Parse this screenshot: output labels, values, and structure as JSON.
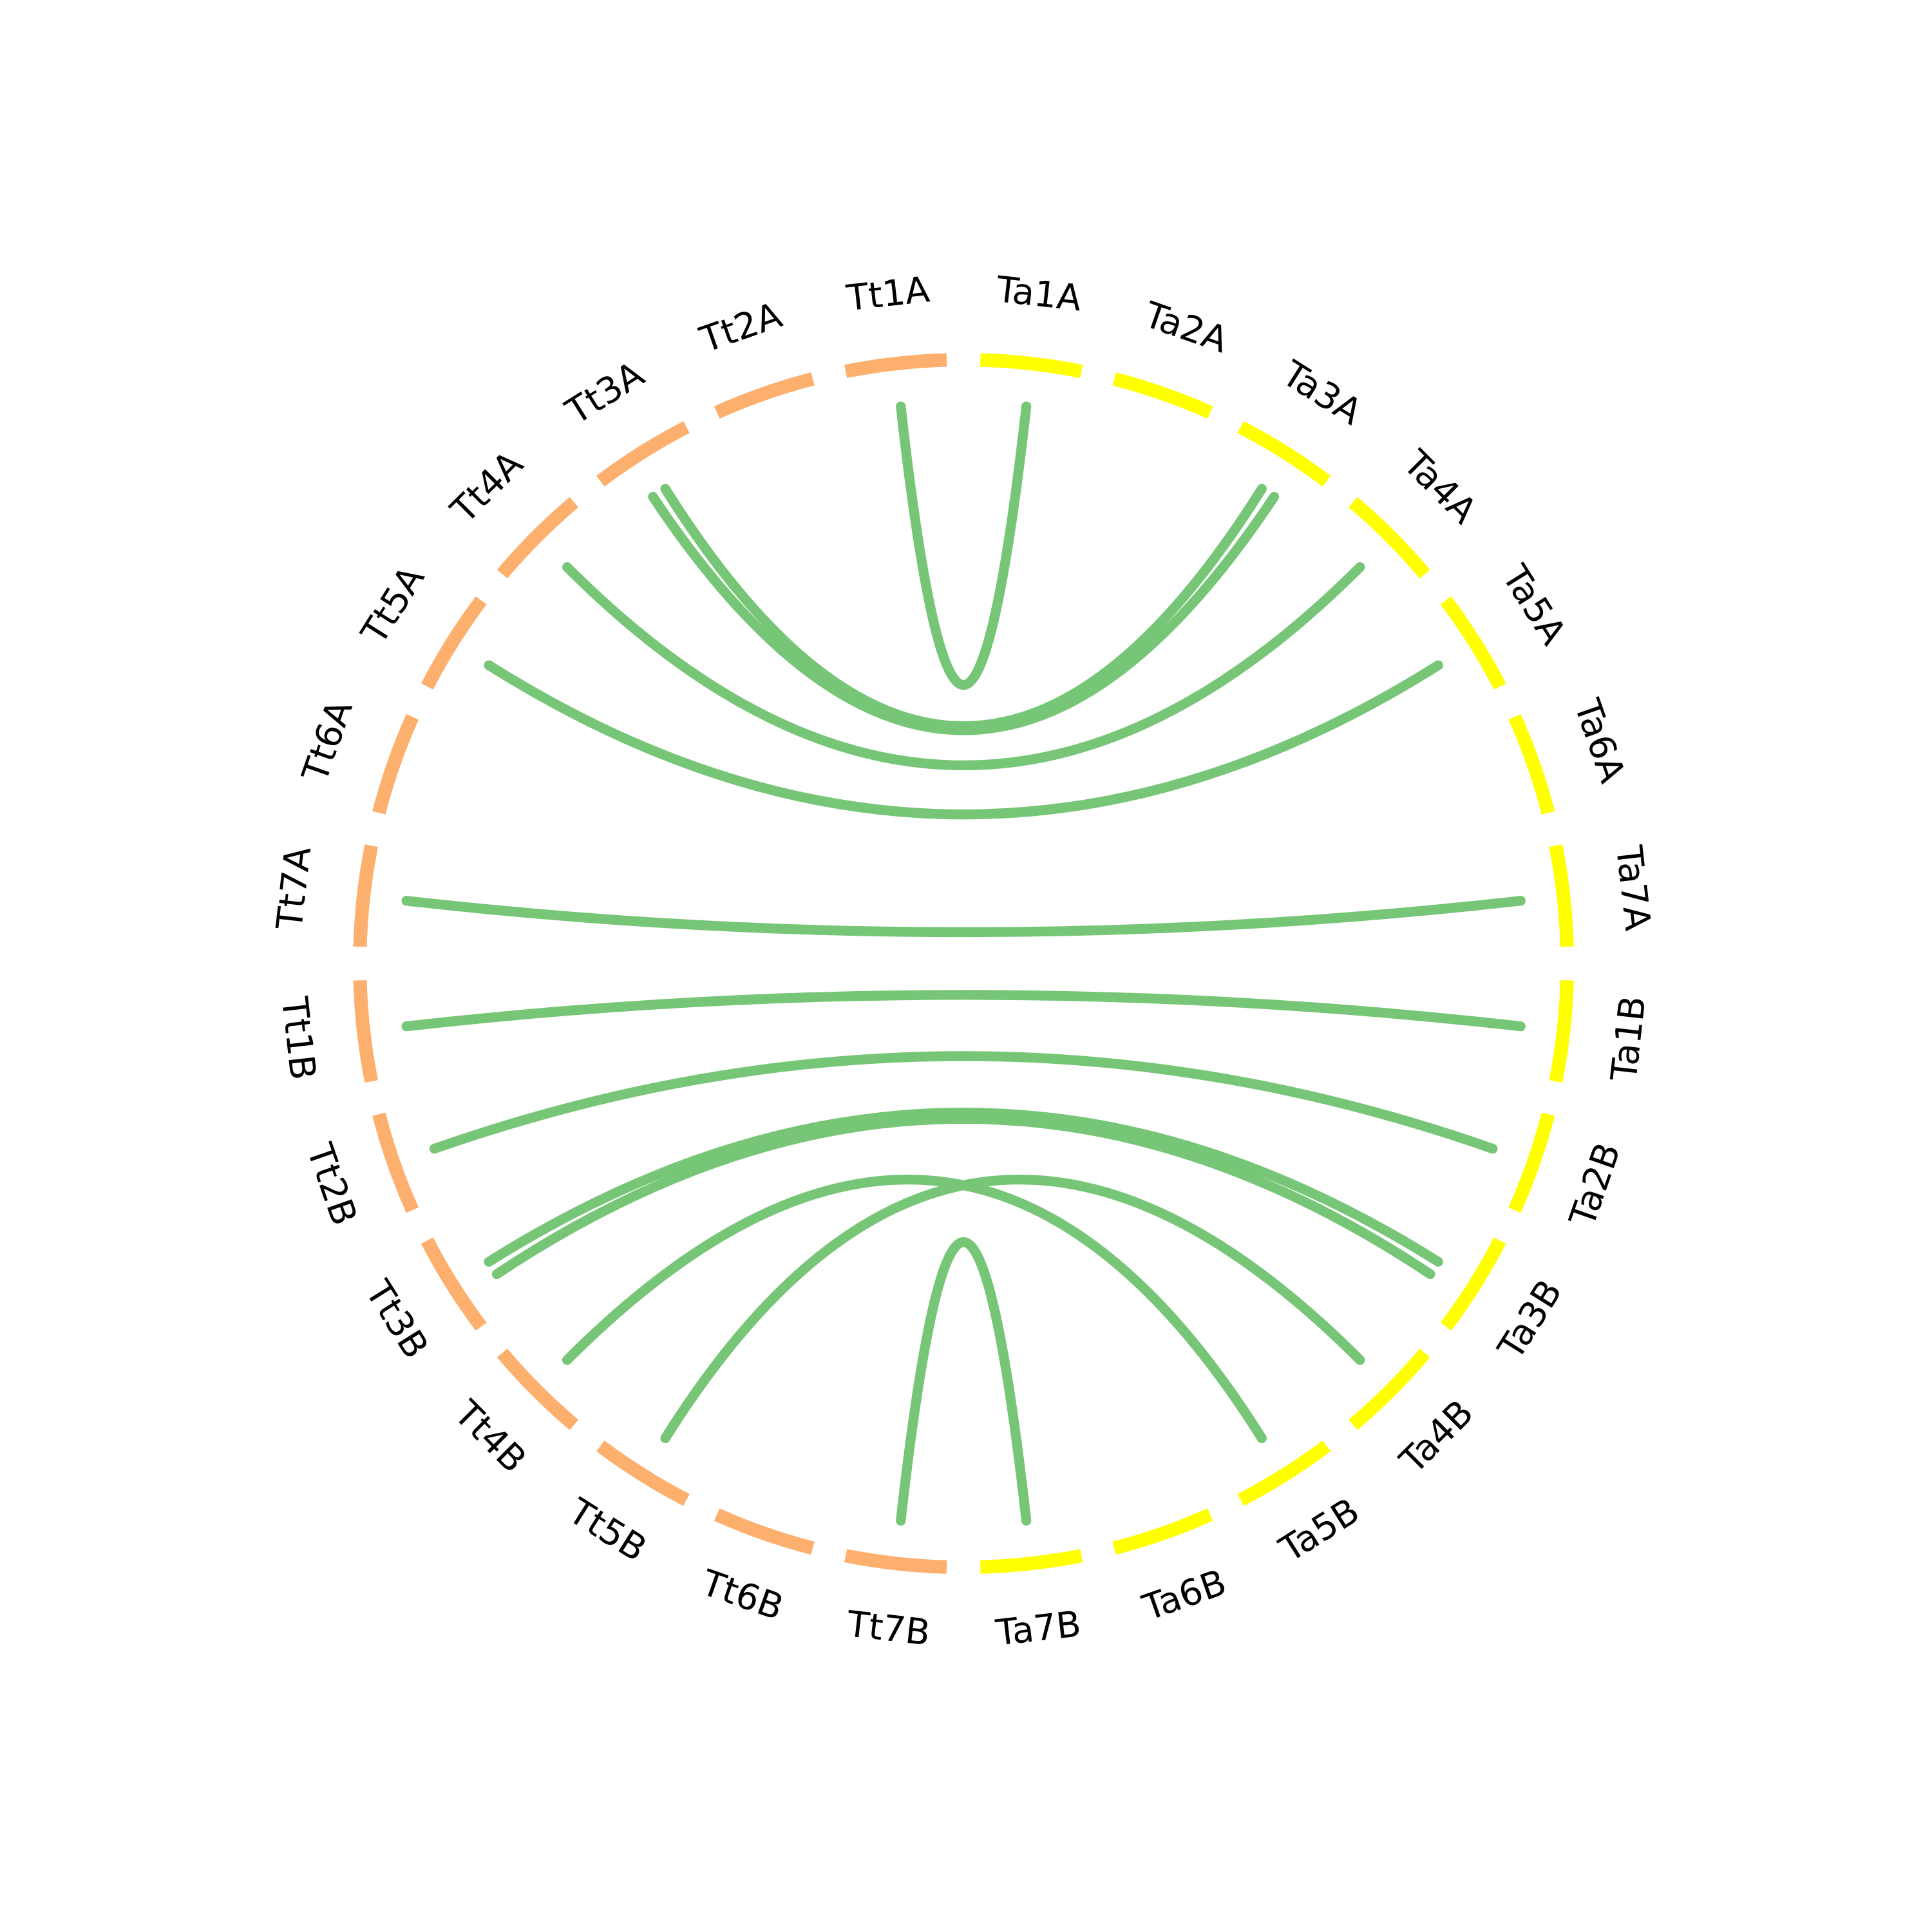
{
  "colors": {
    "Tt": "#fdb06e",
    "Ta": "#ffff00",
    "link": "#77c677"
  },
  "segments": [
    {
      "label": "Tt1A",
      "group": "Tt"
    },
    {
      "label": "Tt2A",
      "group": "Tt"
    },
    {
      "label": "Tt3A",
      "group": "Tt"
    },
    {
      "label": "Tt4A",
      "group": "Tt"
    },
    {
      "label": "Tt5A",
      "group": "Tt"
    },
    {
      "label": "Tt6A",
      "group": "Tt"
    },
    {
      "label": "Tt7A",
      "group": "Tt"
    },
    {
      "label": "Tt1B",
      "group": "Tt"
    },
    {
      "label": "Tt2B",
      "group": "Tt"
    },
    {
      "label": "Tt3B",
      "group": "Tt"
    },
    {
      "label": "Tt4B",
      "group": "Tt"
    },
    {
      "label": "Tt5B",
      "group": "Tt"
    },
    {
      "label": "Tt6B",
      "group": "Tt"
    },
    {
      "label": "Tt7B",
      "group": "Tt"
    },
    {
      "label": "Ta1A",
      "group": "Ta"
    },
    {
      "label": "Ta2A",
      "group": "Ta"
    },
    {
      "label": "Ta3A",
      "group": "Ta"
    },
    {
      "label": "Ta4A",
      "group": "Ta"
    },
    {
      "label": "Ta5A",
      "group": "Ta"
    },
    {
      "label": "Ta6A",
      "group": "Ta"
    },
    {
      "label": "Ta7A",
      "group": "Ta"
    },
    {
      "label": "Ta1B",
      "group": "Ta"
    },
    {
      "label": "Ta2B",
      "group": "Ta"
    },
    {
      "label": "Ta3B",
      "group": "Ta"
    },
    {
      "label": "Ta4B",
      "group": "Ta"
    },
    {
      "label": "Ta5B",
      "group": "Ta"
    },
    {
      "label": "Ta6B",
      "group": "Ta"
    },
    {
      "label": "Ta7B",
      "group": "Ta"
    }
  ],
  "links": [
    {
      "from": "Tt1A",
      "to": "Ta1A"
    },
    {
      "from": "Tt3A",
      "to": "Ta3A"
    },
    {
      "from": "Tt3A",
      "to": "Ta3A"
    },
    {
      "from": "Tt4A",
      "to": "Ta4A"
    },
    {
      "from": "Tt5A",
      "to": "Ta5A"
    },
    {
      "from": "Tt7A",
      "to": "Ta7A"
    },
    {
      "from": "Tt1B",
      "to": "Ta1B"
    },
    {
      "from": "Tt2B",
      "to": "Ta2B"
    },
    {
      "from": "Tt3B",
      "to": "Ta3B"
    },
    {
      "from": "Tt3B",
      "to": "Ta3B"
    },
    {
      "from": "Tt4B",
      "to": "Ta5B"
    },
    {
      "from": "Tt5B",
      "to": "Ta4B"
    },
    {
      "from": "Tt7B",
      "to": "Ta7B"
    }
  ]
}
